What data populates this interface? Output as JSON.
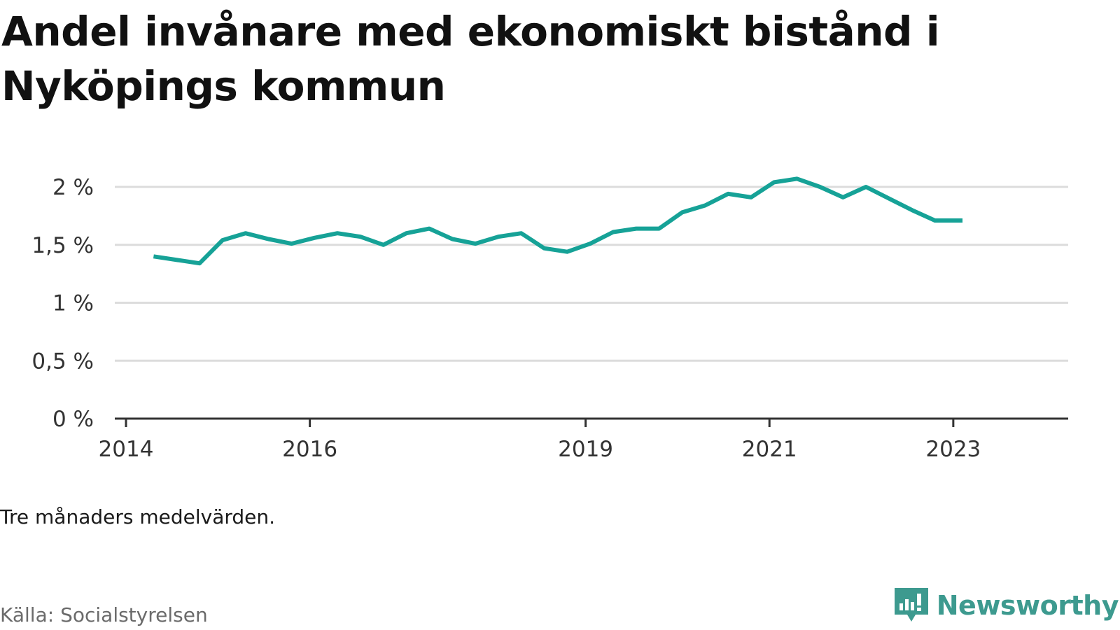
{
  "title": "Andel invånare med ekonomiskt bistånd i Nyköpings kommun",
  "note": "Tre månaders medelvärden.",
  "source": "Källa: Socialstyrelsen",
  "brand": {
    "name": "Newsworthy",
    "icon": "newsworthy-logo-icon"
  },
  "colors": {
    "line": "#16a297",
    "grid": "#dcdcdc",
    "axis": "#333333",
    "brand": "#3d9a8f"
  },
  "chart_data": {
    "type": "line",
    "title": "Andel invånare med ekonomiskt bistånd i Nyköpings kommun",
    "xlabel": "",
    "ylabel": "",
    "x_ticks": [
      {
        "label": "2014",
        "year": 2014.0
      },
      {
        "label": "2016",
        "year": 2016.0
      },
      {
        "label": "2019",
        "year": 2019.0
      },
      {
        "label": "2021",
        "year": 2021.0
      },
      {
        "label": "2023",
        "year": 2023.0
      }
    ],
    "y_ticks": [
      {
        "label": "0 %",
        "value": 0
      },
      {
        "label": "0,5 %",
        "value": 0.5
      },
      {
        "label": "1 %",
        "value": 1
      },
      {
        "label": "1,5 %",
        "value": 1.5
      },
      {
        "label": "2 %",
        "value": 2
      }
    ],
    "xlim": [
      2014.0,
      2024.25
    ],
    "ylim": [
      0,
      2
    ],
    "grid": true,
    "series": [
      {
        "x": [
          2014.3,
          2014.8,
          2015.05,
          2015.3,
          2015.55,
          2015.8,
          2016.05,
          2016.3,
          2016.55,
          2016.8,
          2017.05,
          2017.3,
          2017.55,
          2017.8,
          2018.05,
          2018.3,
          2018.55,
          2018.8,
          2019.05,
          2019.3,
          2019.55,
          2019.8,
          2020.05,
          2020.3,
          2020.55,
          2020.8,
          2021.05,
          2021.3,
          2021.55,
          2021.8,
          2022.05,
          2022.3,
          2022.55,
          2022.8,
          2023.1
        ],
        "values": [
          1.4,
          1.34,
          1.54,
          1.6,
          1.55,
          1.51,
          1.56,
          1.6,
          1.57,
          1.5,
          1.6,
          1.64,
          1.55,
          1.51,
          1.57,
          1.6,
          1.47,
          1.44,
          1.51,
          1.61,
          1.64,
          1.64,
          1.78,
          1.84,
          1.94,
          1.91,
          2.04,
          2.07,
          2.0,
          1.91,
          2.0,
          1.9,
          1.8,
          1.71,
          1.71
        ]
      }
    ]
  }
}
